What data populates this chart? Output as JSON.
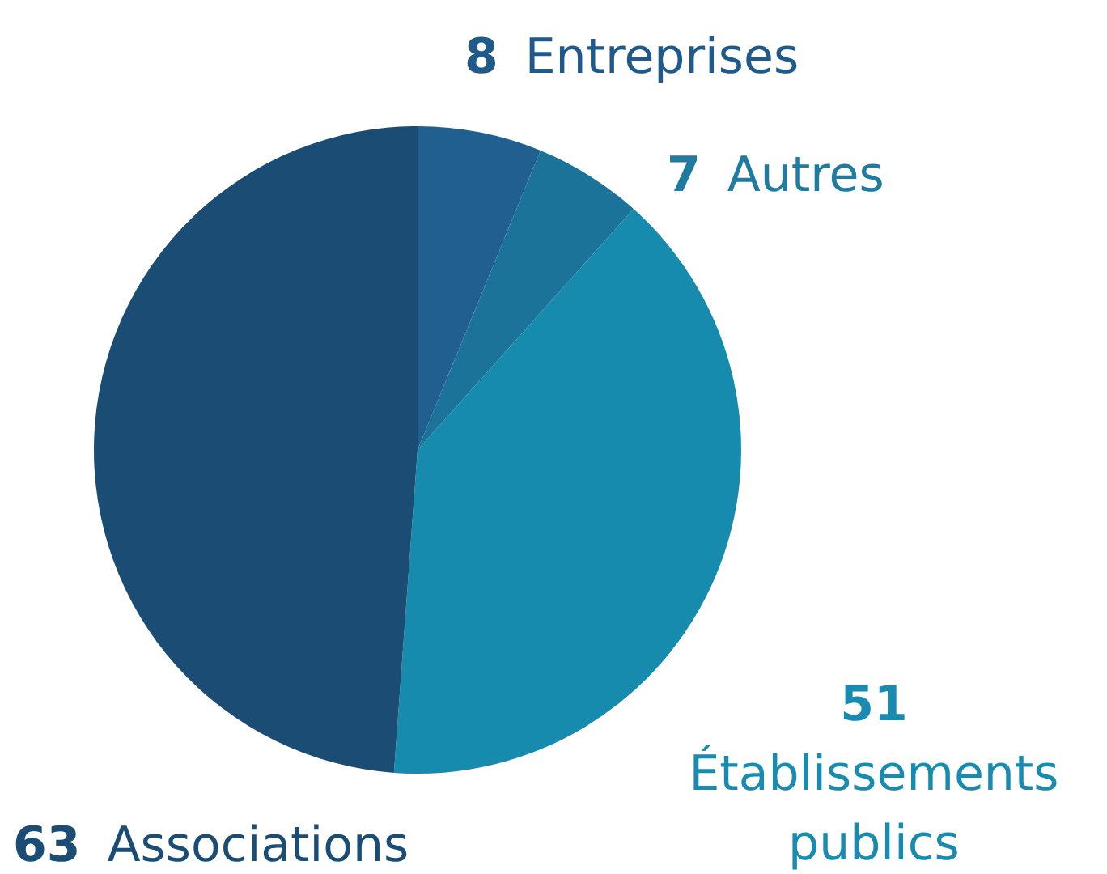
{
  "chart_data": {
    "type": "pie",
    "categories": [
      "Entreprises",
      "Autres",
      "Établissements publics",
      "Associations"
    ],
    "values": [
      8,
      7,
      51,
      63
    ],
    "colors": [
      "#205f8f",
      "#1c7399",
      "#178bad",
      "#1b4d74"
    ],
    "data_labels": true
  }
}
